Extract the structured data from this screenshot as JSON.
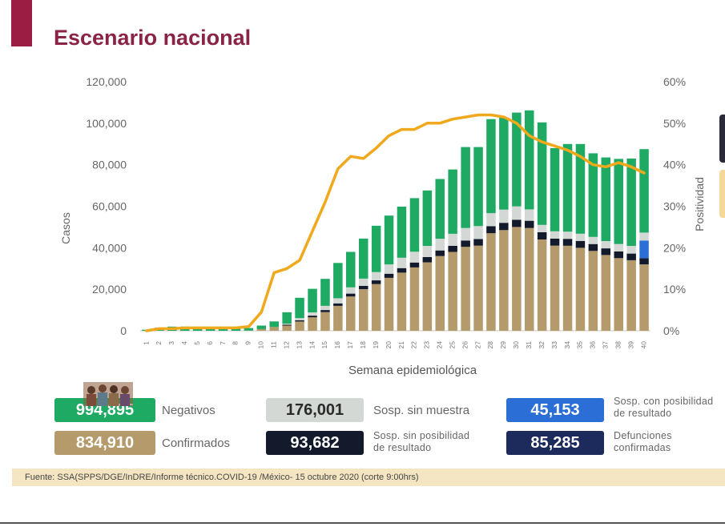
{
  "header": {
    "title": "Escenario nacional"
  },
  "colors": {
    "accent": "#9b1d44",
    "title": "#8b2346",
    "negativos": "#1faa63",
    "confirmados": "#b59b6b",
    "sosp_sin_muestra": "#d3d8d5",
    "sosp_sin_posibilidad": "#121a2c",
    "sosp_con_posibilidad": "#2b6fd6",
    "defunciones": "#1d2a5c",
    "positividad": "#f0a81c",
    "footer_bg": "#f4e6c2"
  },
  "chart_data": {
    "type": "bar",
    "stacked": true,
    "xlabel": "Semana epidemiológica",
    "ylabel": "Casos",
    "y2label": "Positividad",
    "ylim": [
      0,
      120000
    ],
    "y2lim": [
      0,
      60
    ],
    "yticks": [
      "120,000",
      "100,000",
      "80,000",
      "60,000",
      "40,000",
      "20,000",
      "0"
    ],
    "y2ticks": [
      "60%",
      "50%",
      "40%",
      "30%",
      "20%",
      "10%",
      "0%"
    ],
    "categories": [
      "1",
      "2",
      "3",
      "4",
      "5",
      "6",
      "7",
      "8",
      "9",
      "10",
      "11",
      "12",
      "13",
      "14",
      "15",
      "16",
      "17",
      "18",
      "19",
      "20",
      "21",
      "22",
      "23",
      "24",
      "25",
      "26",
      "27",
      "28",
      "29",
      "30",
      "31",
      "32",
      "33",
      "34",
      "35",
      "36",
      "37",
      "38",
      "39",
      "40"
    ],
    "series": [
      {
        "name": "Confirmados",
        "color": "#b59b6b",
        "values": [
          0,
          0,
          0,
          0,
          0,
          0,
          0,
          0,
          100,
          800,
          1800,
          2500,
          4500,
          6500,
          9000,
          12000,
          16500,
          20000,
          22500,
          25500,
          28000,
          30500,
          33000,
          36000,
          38000,
          40500,
          41000,
          47000,
          48500,
          50000,
          49500,
          44000,
          41000,
          41000,
          40000,
          38500,
          36500,
          35000,
          34000,
          32000
        ]
      },
      {
        "name": "Sosp. sin posibilidad de resultado",
        "color": "#121a2c",
        "values": [
          0,
          0,
          0,
          0,
          0,
          0,
          0,
          0,
          0,
          0,
          0,
          400,
          600,
          800,
          1000,
          1200,
          1400,
          1600,
          1800,
          2000,
          2200,
          2400,
          2500,
          2700,
          2900,
          3000,
          3200,
          3400,
          3500,
          3500,
          3500,
          3500,
          3400,
          3300,
          3300,
          3300,
          3200,
          3200,
          3200,
          3000
        ]
      },
      {
        "name": "Sosp. con posibilidad de resultado",
        "color": "#2b6fd6",
        "values": [
          0,
          0,
          0,
          0,
          0,
          0,
          0,
          0,
          0,
          0,
          0,
          0,
          0,
          0,
          0,
          0,
          0,
          0,
          0,
          0,
          0,
          0,
          0,
          0,
          0,
          0,
          0,
          0,
          0,
          0,
          0,
          0,
          0,
          0,
          0,
          0,
          0,
          0,
          0,
          8500
        ]
      },
      {
        "name": "Sosp. sin muestra",
        "color": "#d3d8d5",
        "values": [
          0,
          0,
          0,
          0,
          0,
          0,
          0,
          0,
          0,
          0,
          0,
          500,
          1000,
          1500,
          2000,
          2500,
          3000,
          3500,
          4000,
          4500,
          5000,
          5200,
          5400,
          5600,
          5800,
          6000,
          6200,
          6300,
          6400,
          6400,
          5500,
          3500,
          3500,
          3500,
          3500,
          3400,
          3500,
          3600,
          3700,
          3800
        ]
      },
      {
        "name": "Negativos",
        "color": "#1faa63",
        "values": [
          500,
          1500,
          2000,
          2000,
          1500,
          1500,
          1500,
          1500,
          1200,
          1700,
          2700,
          5500,
          9800,
          11400,
          13000,
          17000,
          17100,
          19300,
          22300,
          23500,
          24600,
          25800,
          26700,
          28800,
          31000,
          39000,
          38100,
          45300,
          44400,
          45200,
          47700,
          49400,
          40100,
          42200,
          43200,
          40300,
          40300,
          41000,
          42100,
          40200
        ]
      },
      {
        "name": "Positividad",
        "type": "line",
        "axis": "y2",
        "color": "#f0a81c",
        "values": [
          0,
          0.5,
          0.5,
          0.7,
          0.7,
          0.7,
          0.7,
          0.7,
          1.0,
          4.5,
          14,
          15,
          17,
          24,
          31,
          39,
          42,
          41.5,
          44,
          47,
          48.5,
          48.5,
          50,
          50,
          51,
          51.5,
          52,
          52,
          51.5,
          50,
          47,
          45.5,
          44.5,
          43.5,
          42,
          40,
          39.5,
          40.5,
          39.5,
          38
        ]
      }
    ]
  },
  "legend": {
    "negativos": {
      "value": "994,895",
      "label": "Negativos"
    },
    "confirmados": {
      "value": "834,910",
      "label": "Confirmados"
    },
    "sosp_sin_muestra": {
      "value": "176,001",
      "label": "Sosp. sin muestra"
    },
    "sosp_sin_posibilidad": {
      "value": "93,682",
      "label_line1": "Sosp. sin posibilidad",
      "label_line2": "de resultado"
    },
    "sosp_con_posibilidad": {
      "value": "45,153",
      "label_line1": "Sosp. con posibilidad",
      "label_line2": "de resultado"
    },
    "defunciones": {
      "value": "85,285",
      "label_line1": "Defunciones",
      "label_line2": "confirmadas"
    }
  },
  "footer": {
    "source": "Fuente: SSA(SPPS/DGE/InDRE/Informe técnico.COVID-19 /México- 15 octubre 2020 (corte 9:00hrs)"
  }
}
